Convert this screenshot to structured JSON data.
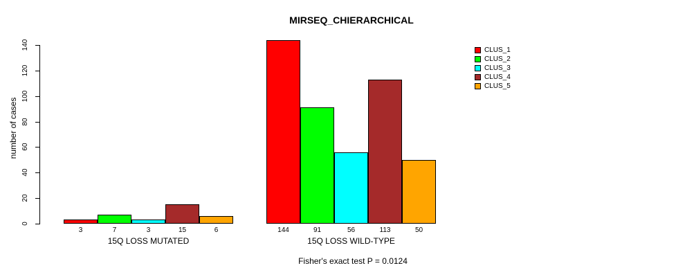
{
  "chart_data": {
    "type": "bar",
    "title": "MIRSEQ_CHIERARCHICAL",
    "ylabel": "number of cases",
    "ylim": [
      0,
      140
    ],
    "yticks": [
      0,
      20,
      40,
      60,
      80,
      100,
      120,
      140
    ],
    "categories": [
      "15Q LOSS MUTATED",
      "15Q LOSS WILD-TYPE"
    ],
    "series": [
      {
        "name": "CLUS_1",
        "color": "#ff0000",
        "values": [
          3,
          144
        ]
      },
      {
        "name": "CLUS_2",
        "color": "#00ff00",
        "values": [
          7,
          91
        ]
      },
      {
        "name": "CLUS_3",
        "color": "#00ffff",
        "values": [
          3,
          56
        ]
      },
      {
        "name": "CLUS_4",
        "color": "#a52a2a",
        "values": [
          15,
          113
        ]
      },
      {
        "name": "CLUS_5",
        "color": "#ffa500",
        "values": [
          6,
          50
        ]
      }
    ],
    "bar_value_labels_shown": true,
    "legend_position": "right",
    "grid": false,
    "annotation": "Fisher's exact test P = 0.0124"
  }
}
